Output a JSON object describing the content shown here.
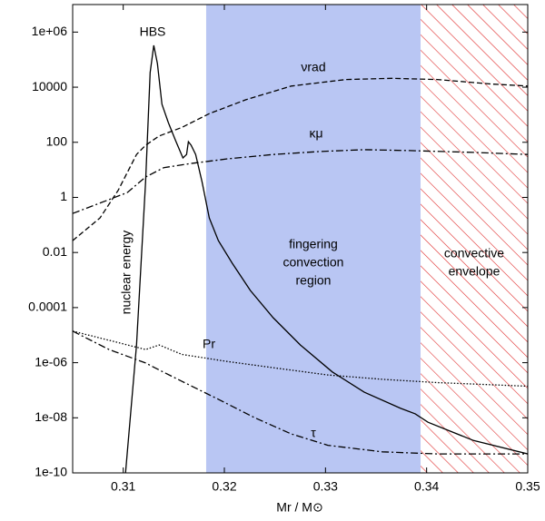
{
  "chart_data": {
    "type": "line",
    "x_label": "Mr / M⊙",
    "xlim": [
      0.305,
      0.35
    ],
    "xticks": [
      0.31,
      0.32,
      0.33,
      0.34,
      0.35
    ],
    "ylim": [
      1e-10,
      10000000.0
    ],
    "yscale": "log",
    "yticks": [
      {
        "value": 1e-10,
        "label": "1e-10"
      },
      {
        "value": 1e-08,
        "label": "1e-08"
      },
      {
        "value": 1e-06,
        "label": "1e-06"
      },
      0.0001,
      0.01,
      1,
      100,
      10000,
      {
        "value": 1000000,
        "label": "1e+06"
      }
    ],
    "regions": [
      {
        "label": [
          "fingering",
          "convection",
          "region"
        ],
        "xlim": [
          0.3182,
          0.3394
        ],
        "color": "#b9c6f3",
        "style": "solid"
      },
      {
        "label": [
          "convective",
          "envelope"
        ],
        "xlim": [
          0.3394,
          0.35
        ],
        "color": "#e03030",
        "style": "hatch"
      }
    ],
    "annotations": [
      "HBS"
    ],
    "series": [
      {
        "name": "nuclear energy",
        "color": "#000000",
        "dash": "solid",
        "x": [
          0.31023,
          0.31131,
          0.31221,
          0.31266,
          0.31302,
          0.31338,
          0.31383,
          0.31446,
          0.31518,
          0.3159,
          0.31626,
          0.31644,
          0.31671,
          0.31716,
          0.31779,
          0.31851,
          0.31941,
          0.32077,
          0.32257,
          0.32482,
          0.32752,
          0.33068,
          0.33383,
          0.33743,
          0.33887,
          0.34014,
          0.34464,
          0.35
        ],
        "values": [
          1e-10,
          4.4e-06,
          3.7,
          34000.0,
          330000.0,
          72000.0,
          2400,
          520,
          115,
          27,
          36,
          105,
          78,
          36,
          3.7,
          0.18,
          0.027,
          0.0041,
          0.00042,
          4.3e-05,
          4.4e-06,
          4.6e-07,
          8.5e-08,
          2.2e-08,
          1.4e-08,
          6.9e-09,
          1.5e-09,
          4.9e-10
        ]
      },
      {
        "name": "νrad",
        "color": "#000000",
        "dash": "dashed",
        "x": [
          0.305,
          0.3077,
          0.3095,
          0.31131,
          0.31221,
          0.31356,
          0.31581,
          0.31851,
          0.32212,
          0.32662,
          0.33203,
          0.33653,
          0.34104,
          0.34644,
          0.35
        ],
        "values": [
          0.027,
          0.18,
          1.8,
          36,
          78,
          170,
          350,
          1100,
          3500,
          11000,
          19000,
          21000,
          19000,
          13000,
          11000
        ]
      },
      {
        "name": "κμ",
        "color": "#000000",
        "dash": "dashdot",
        "x": [
          0.305,
          0.3086,
          0.31041,
          0.31221,
          0.31401,
          0.31671,
          0.32032,
          0.32482,
          0.32932,
          0.33383,
          0.33833,
          0.34464,
          0.35
        ],
        "values": [
          0.26,
          0.83,
          1.5,
          5.5,
          12,
          17,
          25,
          36,
          46,
          54,
          50,
          43,
          36
        ]
      },
      {
        "name": "Pr",
        "color": "#000000",
        "dash": "dotted",
        "x": [
          0.305,
          0.3086,
          0.31221,
          0.31356,
          0.31581,
          0.32032,
          0.32482,
          0.33023,
          0.33563,
          0.34104,
          0.35
        ],
        "values": [
          1.4e-05,
          6.5e-06,
          3e-06,
          4.4e-06,
          2e-06,
          1.1e-06,
          6.6e-07,
          3.6e-07,
          2.5e-07,
          1.9e-07,
          1.4e-07
        ]
      },
      {
        "name": "τ",
        "color": "#000000",
        "dash": "dashdot",
        "x": [
          0.305,
          0.3086,
          0.31221,
          0.31311,
          0.31581,
          0.31941,
          0.32302,
          0.32662,
          0.33023,
          0.33563,
          0.34104,
          0.35
        ],
        "values": [
          1.4e-05,
          3e-06,
          9.8e-07,
          6.6e-07,
          2.1e-07,
          4.7e-08,
          1e-08,
          2.6e-09,
          1e-09,
          5.8e-10,
          4.9e-10,
          4.9e-10
        ]
      }
    ]
  }
}
